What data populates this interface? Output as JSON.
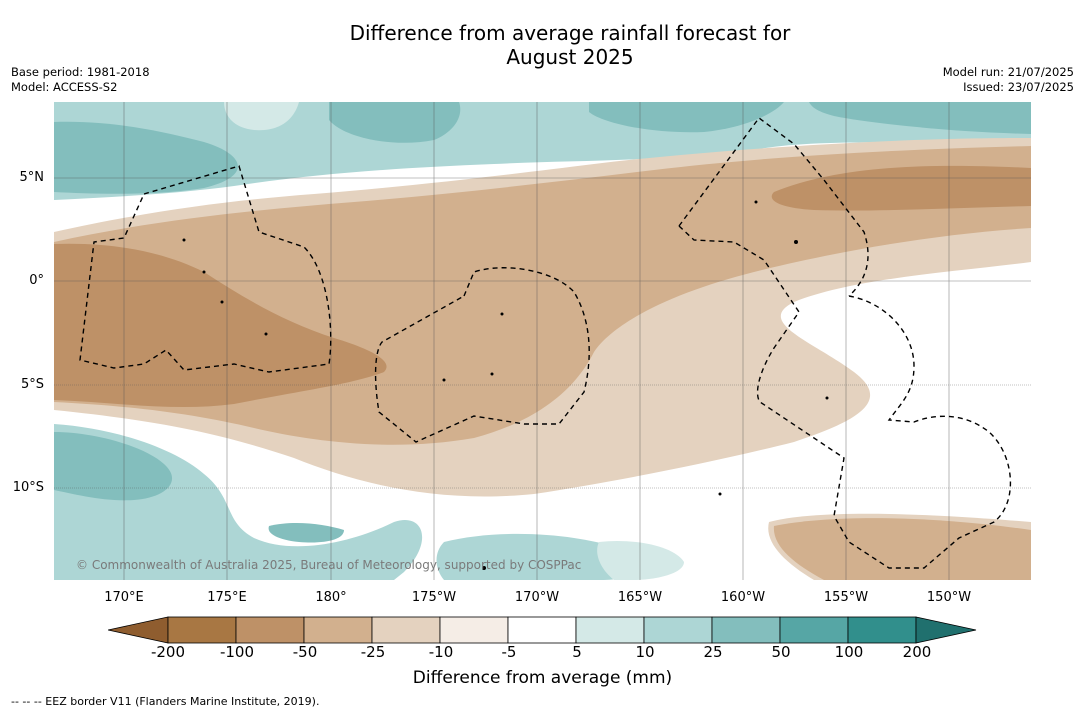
{
  "title_line1": "Difference from average rainfall forecast for",
  "title_line2": "August 2025",
  "base_period": "Base period: 1981-2018",
  "model": "Model: ACCESS-S2",
  "model_run": "Model run: 21/07/2025",
  "issued": "Issued: 23/07/2025",
  "lat_labels": [
    "5°N",
    "0°",
    "5°S",
    "10°S"
  ],
  "lon_labels": [
    "170°E",
    "175°E",
    "180°",
    "175°W",
    "170°W",
    "165°W",
    "160°W",
    "155°W",
    "150°W"
  ],
  "copyright": "© Commonwealth of Australia 2025, Bureau of Meteorology, supported by COSPPac",
  "colorbar": {
    "ticks": [
      "-200",
      "-100",
      "-50",
      "-25",
      "-10",
      "-5",
      "5",
      "10",
      "25",
      "50",
      "100",
      "200"
    ],
    "colors": [
      "#8f5d2f",
      "#a87743",
      "#be9167",
      "#d2b08e",
      "#e4d2bf",
      "#f5ede6",
      "#ffffff",
      "#d4e9e7",
      "#add6d5",
      "#83bebd",
      "#56a6a5",
      "#318f8c",
      "#20706e"
    ],
    "label": "Difference from average (mm)"
  },
  "footnote": "--  --  -- EEZ border V11 (Flanders Marine Institute, 2019)."
}
